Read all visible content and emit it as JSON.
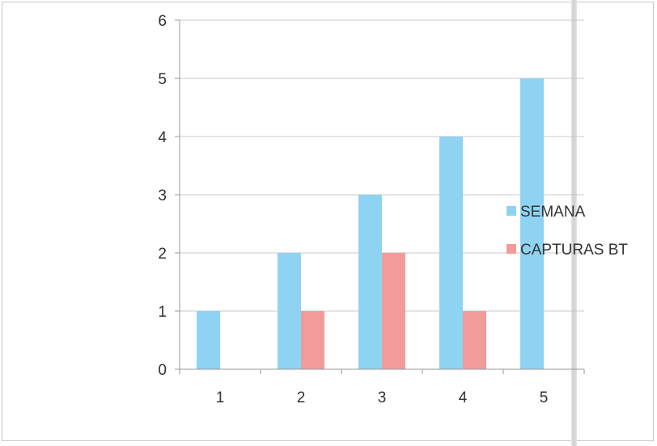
{
  "chart_data": {
    "type": "bar",
    "title": "",
    "xlabel": "",
    "ylabel": "",
    "categories": [
      "1",
      "2",
      "3",
      "4",
      "5"
    ],
    "series": [
      {
        "name": "SEMANA",
        "values": [
          1,
          2,
          3,
          4,
          5
        ],
        "color": "#8fd3f3"
      },
      {
        "name": "CAPTURAS BT",
        "values": [
          0,
          1,
          2,
          1,
          0
        ],
        "color": "#f29b9b"
      }
    ],
    "ylim": [
      0,
      6
    ],
    "yticks": [
      "0",
      "1",
      "2",
      "3",
      "4",
      "5",
      "6"
    ],
    "grid": true,
    "legend": "right"
  }
}
